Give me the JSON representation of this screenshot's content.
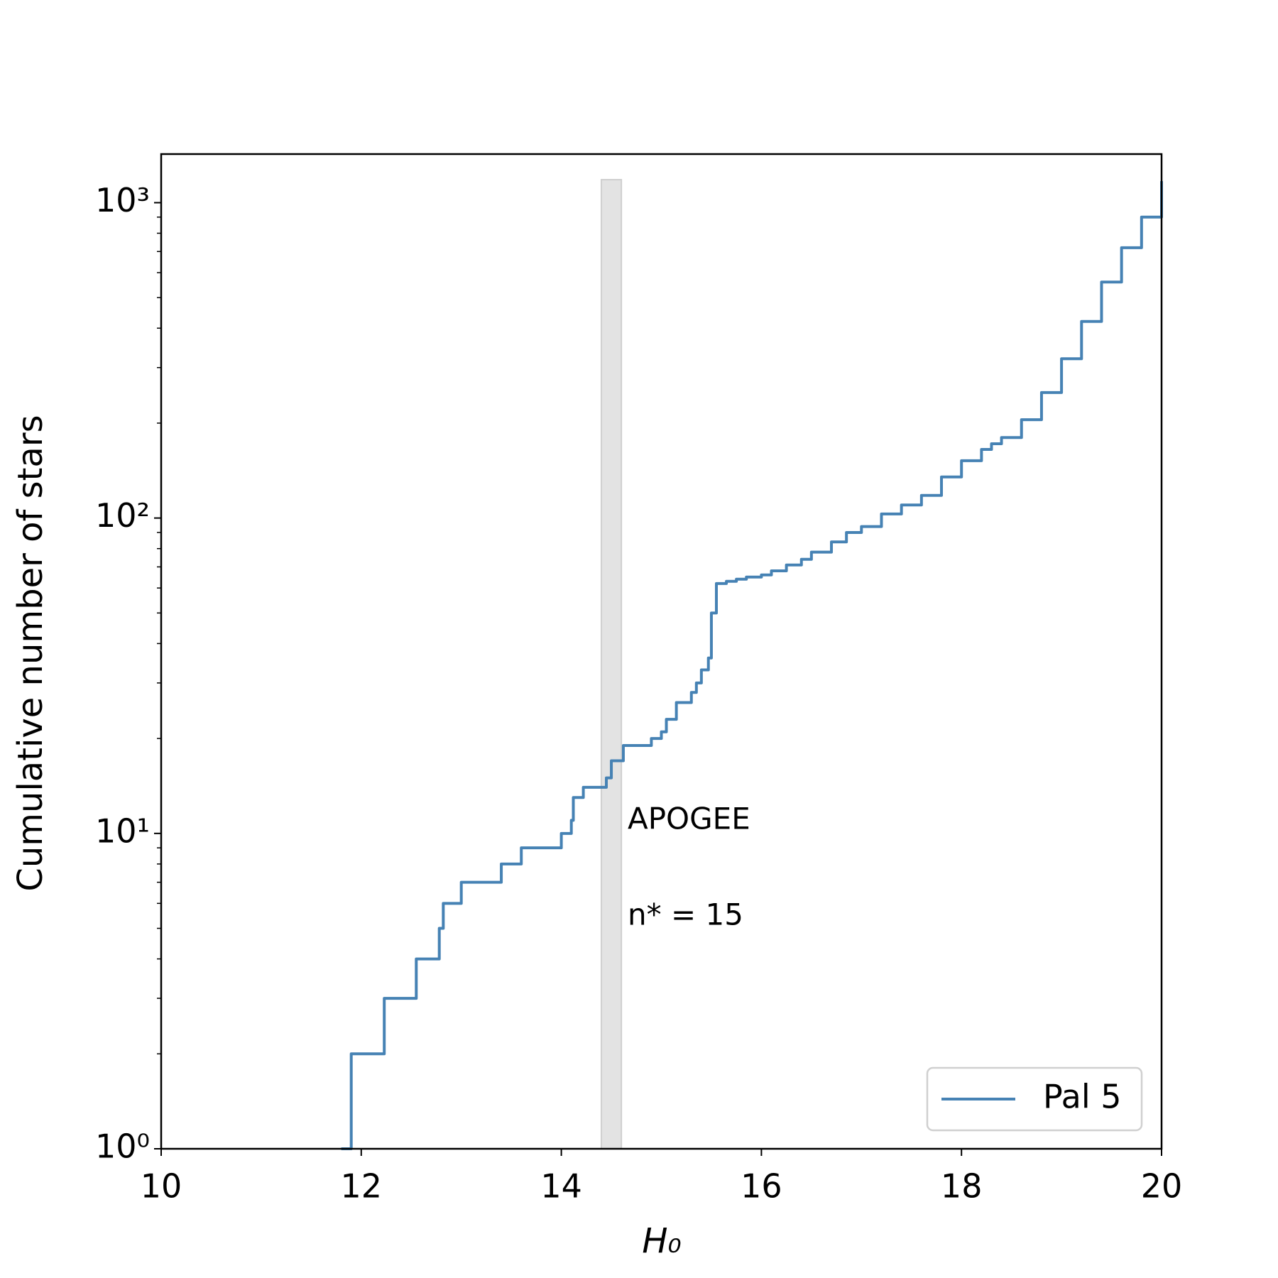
{
  "chart_data": {
    "type": "step",
    "xlabel": "H₀",
    "ylabel": "Cumulative number of stars",
    "xlim": [
      10,
      20
    ],
    "xticks": [
      10,
      12,
      14,
      16,
      18,
      20
    ],
    "ylim": [
      1,
      1426
    ],
    "log_y": true,
    "yticks": [
      {
        "value": 1,
        "label": "10⁰"
      },
      {
        "value": 10,
        "label": "10¹"
      },
      {
        "value": 100,
        "label": "10²"
      },
      {
        "value": 1000,
        "label": "10³"
      }
    ],
    "yminorticks": [
      2,
      3,
      4,
      5,
      6,
      7,
      8,
      9,
      20,
      30,
      40,
      50,
      60,
      70,
      80,
      90,
      200,
      300,
      400,
      500,
      600,
      700,
      800,
      900
    ],
    "band": {
      "xrange": [
        14.4,
        14.6
      ],
      "top": 1183,
      "color": "#e3e3e3",
      "text": "APOGEE",
      "count_text": "n* = 15"
    },
    "legend_loc": "lower right",
    "series": [
      {
        "name": "Pal 5",
        "color": "#4682b4",
        "x": [
          11.8,
          11.9,
          12.23,
          12.55,
          12.78,
          12.82,
          13.0,
          13.4,
          13.6,
          14.0,
          14.1,
          14.12,
          14.22,
          14.45,
          14.5,
          14.62,
          14.9,
          15.0,
          15.05,
          15.15,
          15.3,
          15.35,
          15.4,
          15.47,
          15.5,
          15.55,
          15.65,
          15.75,
          15.85,
          16.0,
          16.1,
          16.25,
          16.4,
          16.5,
          16.7,
          16.85,
          17.0,
          17.2,
          17.4,
          17.6,
          17.8,
          18.0,
          18.2,
          18.3,
          18.4,
          18.6,
          18.8,
          19.0,
          19.2,
          19.4,
          19.6,
          19.8,
          20.0
        ],
        "values": [
          1,
          2,
          3,
          4,
          5,
          6,
          7,
          8,
          9,
          10,
          11,
          13,
          14,
          15,
          17,
          19,
          20,
          21,
          23,
          26,
          28,
          30,
          33,
          36,
          50,
          62,
          63,
          64,
          65,
          66,
          68,
          71,
          74,
          78,
          84,
          90,
          94,
          103,
          110,
          118,
          135,
          152,
          165,
          172,
          180,
          205,
          250,
          320,
          420,
          560,
          720,
          900,
          1170
        ]
      }
    ]
  }
}
